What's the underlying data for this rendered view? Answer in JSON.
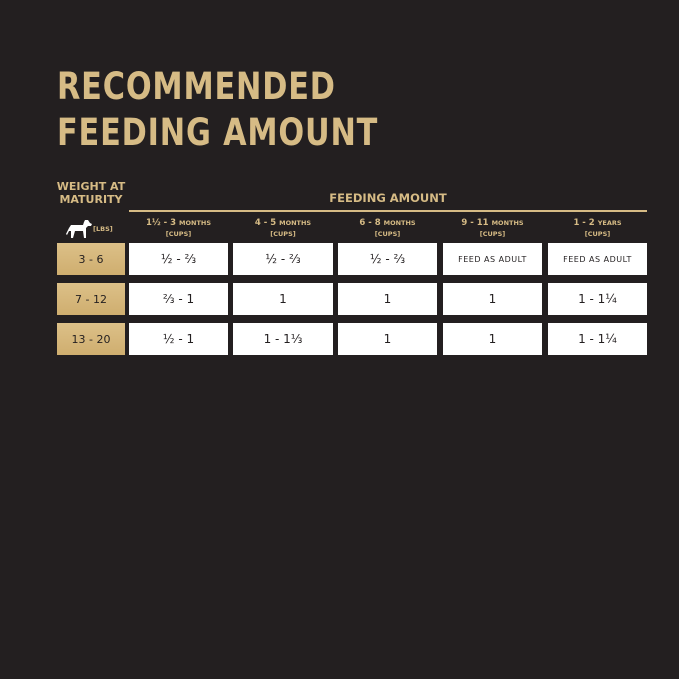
{
  "title": {
    "line1": "RECOMMENDED",
    "line2": "FEEDING AMOUNT"
  },
  "weight_header": {
    "line1": "WEIGHT AT",
    "line2": "MATURITY",
    "unit": "[LBS]",
    "icon": "dog-icon"
  },
  "feeding_header": "FEEDING AMOUNT",
  "columns": [
    {
      "range": "1½ - 3",
      "unit": "MONTHS",
      "sub": "[CUPS]"
    },
    {
      "range": "4 - 5",
      "unit": "MONTHS",
      "sub": "[CUPS]"
    },
    {
      "range": "6 - 8",
      "unit": "MONTHS",
      "sub": "[CUPS]"
    },
    {
      "range": "9 - 11",
      "unit": "MONTHS",
      "sub": "[CUPS]"
    },
    {
      "range": "1 - 2",
      "unit": "YEARS",
      "sub": "[CUPS]"
    }
  ],
  "rows": [
    {
      "weight": "3 - 6",
      "cells": [
        "½ - ⅔",
        "½ - ⅔",
        "½ - ⅔",
        "FEED AS ADULT",
        "FEED AS ADULT"
      ]
    },
    {
      "weight": "7 - 12",
      "cells": [
        "⅔ - 1",
        "1",
        "1",
        "1",
        "1 - 1¼"
      ]
    },
    {
      "weight": "13 - 20",
      "cells": [
        "½ - 1",
        "1 - 1⅓",
        "1",
        "1",
        "1 - 1¼"
      ]
    }
  ],
  "colors": {
    "background": "#231f20",
    "gold": "#d6bb85",
    "cell": "#ffffff"
  }
}
